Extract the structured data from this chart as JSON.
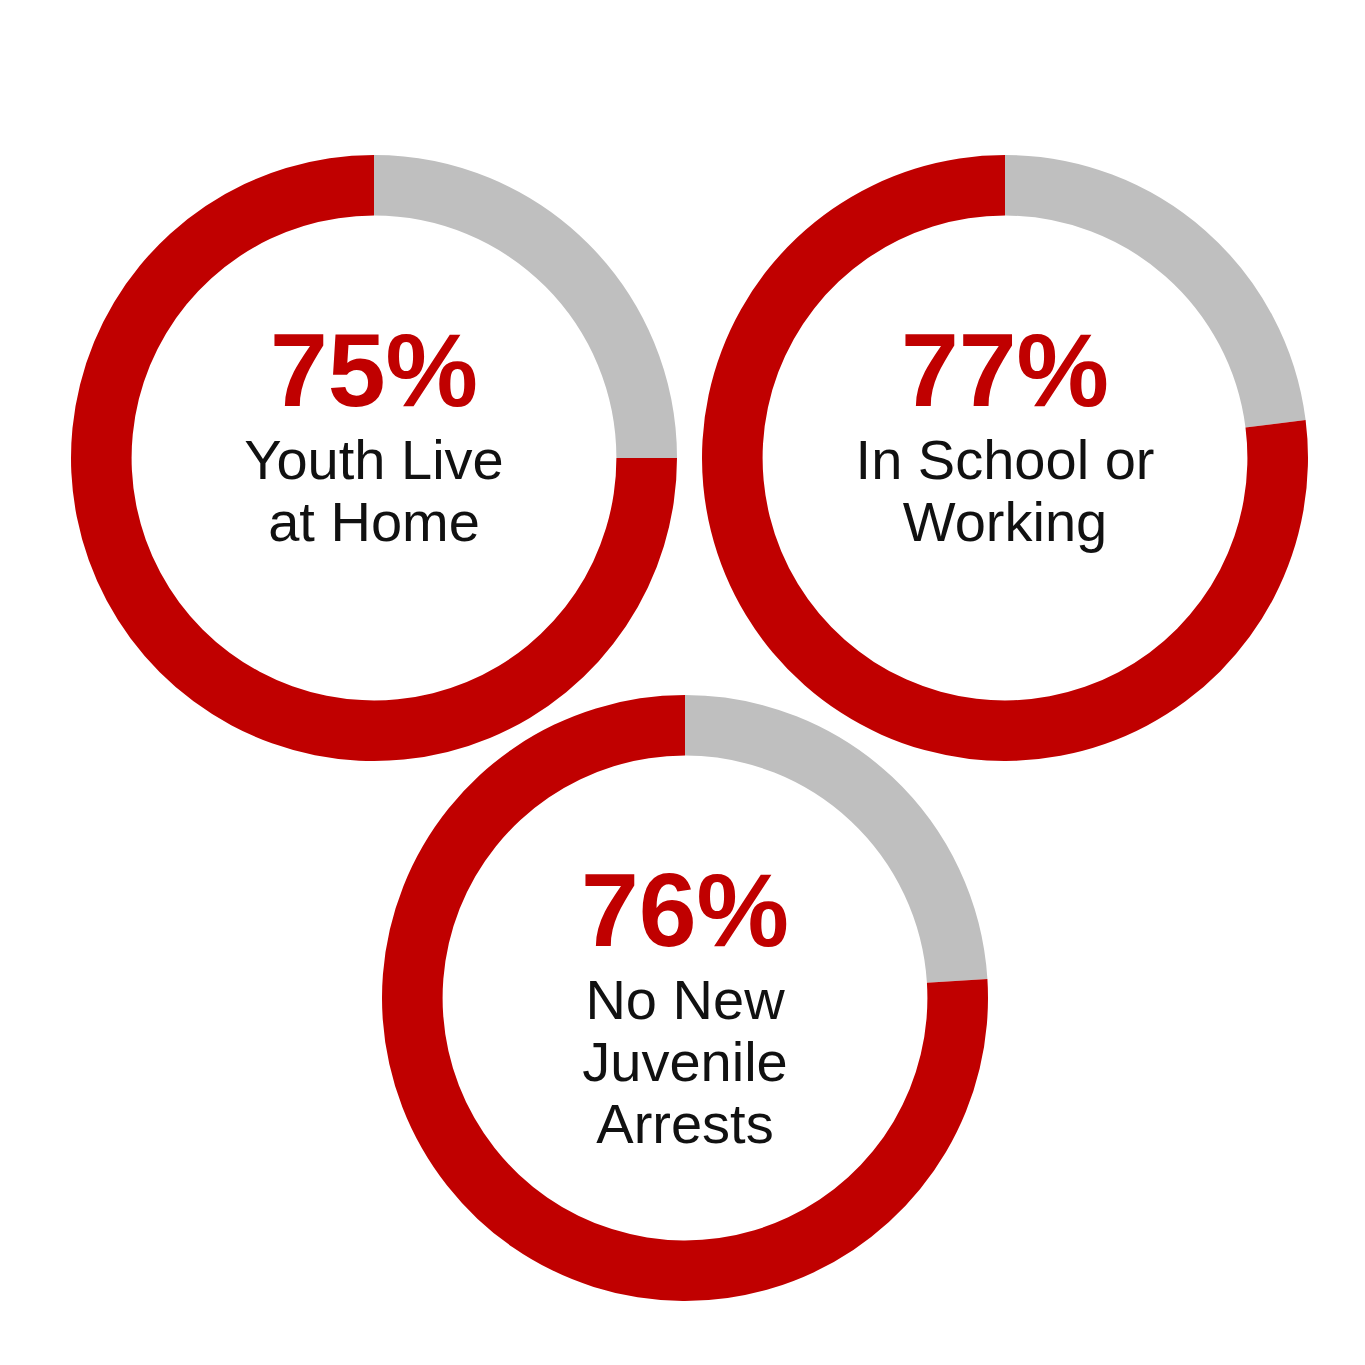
{
  "chart_data": [
    {
      "type": "donut",
      "title": "Youth Live at Home",
      "categories": [
        null,
        null
      ],
      "values": [
        25,
        75
      ],
      "colors": [
        "#bfbfbf",
        "#c00000"
      ],
      "value_labels": [
        null,
        "75%"
      ]
    },
    {
      "type": "donut",
      "title": "In School or Working",
      "categories": [
        null,
        null
      ],
      "values": [
        23,
        77
      ],
      "colors": [
        "#bfbfbf",
        "#c00000"
      ],
      "value_labels": [
        null,
        "77%"
      ]
    },
    {
      "type": "donut",
      "title": "No New Juvenile Arrests",
      "categories": [
        null,
        null
      ],
      "values": [
        24,
        76
      ],
      "colors": [
        "#bfbfbf",
        "#c00000"
      ],
      "value_labels": [
        null,
        "76%"
      ]
    }
  ]
}
